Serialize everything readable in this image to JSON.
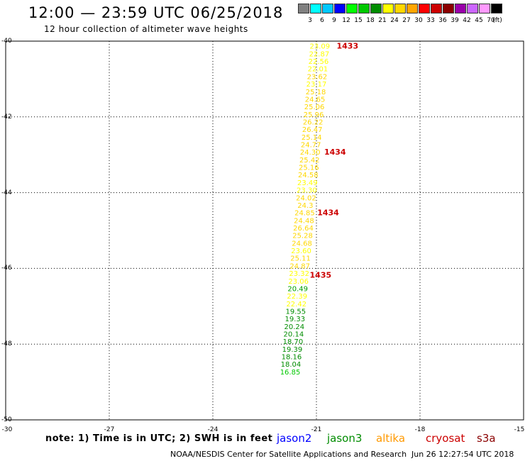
{
  "header": {
    "title": "12:00 — 23:59 UTC 06/25/2018",
    "subtitle": "12 hour collection of altimeter wave heights"
  },
  "legend": {
    "unit_label": "(ft)",
    "bins": [
      {
        "label": "3",
        "color": "#808080"
      },
      {
        "label": "6",
        "color": "#00ffff"
      },
      {
        "label": "9",
        "color": "#00c8ff"
      },
      {
        "label": "12",
        "color": "#0000ff"
      },
      {
        "label": "15",
        "color": "#00ff00"
      },
      {
        "label": "18",
        "color": "#00c800"
      },
      {
        "label": "21",
        "color": "#008c00"
      },
      {
        "label": "24",
        "color": "#ffff00"
      },
      {
        "label": "27",
        "color": "#ffd700"
      },
      {
        "label": "30",
        "color": "#ffa500"
      },
      {
        "label": "33",
        "color": "#ff0000"
      },
      {
        "label": "36",
        "color": "#cc0000"
      },
      {
        "label": "39",
        "color": "#8b0000"
      },
      {
        "label": "42",
        "color": "#9900aa"
      },
      {
        "label": "45",
        "color": "#cc66ff"
      },
      {
        "label": "70",
        "color": "#ff99ff"
      },
      {
        "label": "",
        "color": "#000000"
      }
    ]
  },
  "map": {
    "lat_ticks": [
      "-40",
      "-42",
      "-44",
      "-46",
      "-48",
      "-50"
    ],
    "lon_ticks": [
      "-30",
      "-27",
      "-24",
      "-21",
      "-18",
      "-15"
    ],
    "lat_range": [
      -50,
      -40
    ],
    "lon_range": [
      -30,
      -15
    ],
    "track_points": [
      {
        "lat": -40.05,
        "lon": -20.9,
        "value": "23.09",
        "color": "#ffff00"
      },
      {
        "lat": -40.25,
        "lon": -20.92,
        "value": "22.87",
        "color": "#ffff00"
      },
      {
        "lat": -40.45,
        "lon": -20.94,
        "value": "22.56",
        "color": "#ffff00"
      },
      {
        "lat": -40.65,
        "lon": -20.96,
        "value": "22.01",
        "color": "#ffff00"
      },
      {
        "lat": -40.85,
        "lon": -20.98,
        "value": "23.62",
        "color": "#ffd700"
      },
      {
        "lat": -41.05,
        "lon": -21.0,
        "value": "23.17",
        "color": "#ffff00"
      },
      {
        "lat": -41.25,
        "lon": -21.02,
        "value": "25.18",
        "color": "#ffd700"
      },
      {
        "lat": -41.45,
        "lon": -21.04,
        "value": "24.65",
        "color": "#ffd700"
      },
      {
        "lat": -41.65,
        "lon": -21.06,
        "value": "25.06",
        "color": "#ffd700"
      },
      {
        "lat": -41.85,
        "lon": -21.08,
        "value": "25.96",
        "color": "#ffd700"
      },
      {
        "lat": -42.05,
        "lon": -21.1,
        "value": "26.22",
        "color": "#ffd700"
      },
      {
        "lat": -42.25,
        "lon": -21.12,
        "value": "26.47",
        "color": "#ffd700"
      },
      {
        "lat": -42.45,
        "lon": -21.14,
        "value": "25.14",
        "color": "#ffd700"
      },
      {
        "lat": -42.65,
        "lon": -21.16,
        "value": "24.77",
        "color": "#ffd700"
      },
      {
        "lat": -42.85,
        "lon": -21.18,
        "value": "24.30",
        "color": "#ffd700"
      },
      {
        "lat": -43.05,
        "lon": -21.2,
        "value": "25.42",
        "color": "#ffd700"
      },
      {
        "lat": -43.25,
        "lon": -21.22,
        "value": "25.16",
        "color": "#ffd700"
      },
      {
        "lat": -43.45,
        "lon": -21.24,
        "value": "24.58",
        "color": "#ffd700"
      },
      {
        "lat": -43.65,
        "lon": -21.26,
        "value": "23.49",
        "color": "#ffff00"
      },
      {
        "lat": -43.85,
        "lon": -21.28,
        "value": "23.30",
        "color": "#ffff00"
      },
      {
        "lat": -44.05,
        "lon": -21.3,
        "value": "24.02",
        "color": "#ffd700"
      },
      {
        "lat": -44.25,
        "lon": -21.32,
        "value": "24.3",
        "color": "#ffd700"
      },
      {
        "lat": -44.45,
        "lon": -21.34,
        "value": "24.85",
        "color": "#ffd700"
      },
      {
        "lat": -44.65,
        "lon": -21.36,
        "value": "24.48",
        "color": "#ffd700"
      },
      {
        "lat": -44.85,
        "lon": -21.38,
        "value": "26.64",
        "color": "#ffd700"
      },
      {
        "lat": -45.05,
        "lon": -21.4,
        "value": "25.28",
        "color": "#ffd700"
      },
      {
        "lat": -45.25,
        "lon": -21.42,
        "value": "24.68",
        "color": "#ffd700"
      },
      {
        "lat": -45.45,
        "lon": -21.44,
        "value": "23.60",
        "color": "#ffff00"
      },
      {
        "lat": -45.65,
        "lon": -21.46,
        "value": "25.11",
        "color": "#ffd700"
      },
      {
        "lat": -45.85,
        "lon": -21.48,
        "value": "24.87",
        "color": "#ffd700"
      },
      {
        "lat": -46.05,
        "lon": -21.5,
        "value": "23.32",
        "color": "#ffff00"
      },
      {
        "lat": -46.25,
        "lon": -21.52,
        "value": "23.06",
        "color": "#ffff00"
      },
      {
        "lat": -46.45,
        "lon": -21.54,
        "value": "20.49",
        "color": "#00a000"
      },
      {
        "lat": -46.65,
        "lon": -21.56,
        "value": "22.39",
        "color": "#ffff00"
      },
      {
        "lat": -46.85,
        "lon": -21.58,
        "value": "22.42",
        "color": "#ffff00"
      },
      {
        "lat": -47.05,
        "lon": -21.6,
        "value": "19.55",
        "color": "#008c00"
      },
      {
        "lat": -47.25,
        "lon": -21.62,
        "value": "19.33",
        "color": "#008c00"
      },
      {
        "lat": -47.45,
        "lon": -21.64,
        "value": "20.24",
        "color": "#008c00"
      },
      {
        "lat": -47.65,
        "lon": -21.66,
        "value": "20.14",
        "color": "#008c00"
      },
      {
        "lat": -47.85,
        "lon": -21.68,
        "value": "18.70",
        "color": "#008c00"
      },
      {
        "lat": -48.05,
        "lon": -21.7,
        "value": "19.39",
        "color": "#008c00"
      },
      {
        "lat": -48.25,
        "lon": -21.72,
        "value": "18.16",
        "color": "#008c00"
      },
      {
        "lat": -48.45,
        "lon": -21.74,
        "value": "18.04",
        "color": "#008c00"
      },
      {
        "lat": -48.65,
        "lon": -21.76,
        "value": "16.85",
        "color": "#00c800"
      }
    ],
    "time_labels": [
      {
        "lat": -40.05,
        "lon": -20.1,
        "text": "1433"
      },
      {
        "lat": -42.85,
        "lon": -20.46,
        "text": "1434"
      },
      {
        "lat": -44.45,
        "lon": -20.66,
        "text": "1434"
      },
      {
        "lat": -46.1,
        "lon": -20.88,
        "text": "1435"
      }
    ]
  },
  "footer": {
    "note": "note: 1) Time is in UTC; 2) SWH is in feet",
    "satellites": [
      {
        "name": "jason2",
        "color": "#0000ff"
      },
      {
        "name": "jason3",
        "color": "#008c00"
      },
      {
        "name": "altika",
        "color": "#ff9900"
      },
      {
        "name": "cryosat",
        "color": "#cc0000"
      },
      {
        "name": "s3a",
        "color": "#8b0000"
      }
    ],
    "credit": "NOAA/NESDIS Center for Satellite Applications and Research",
    "timestamp": "Jun 26 12:27:54 UTC 2018"
  }
}
